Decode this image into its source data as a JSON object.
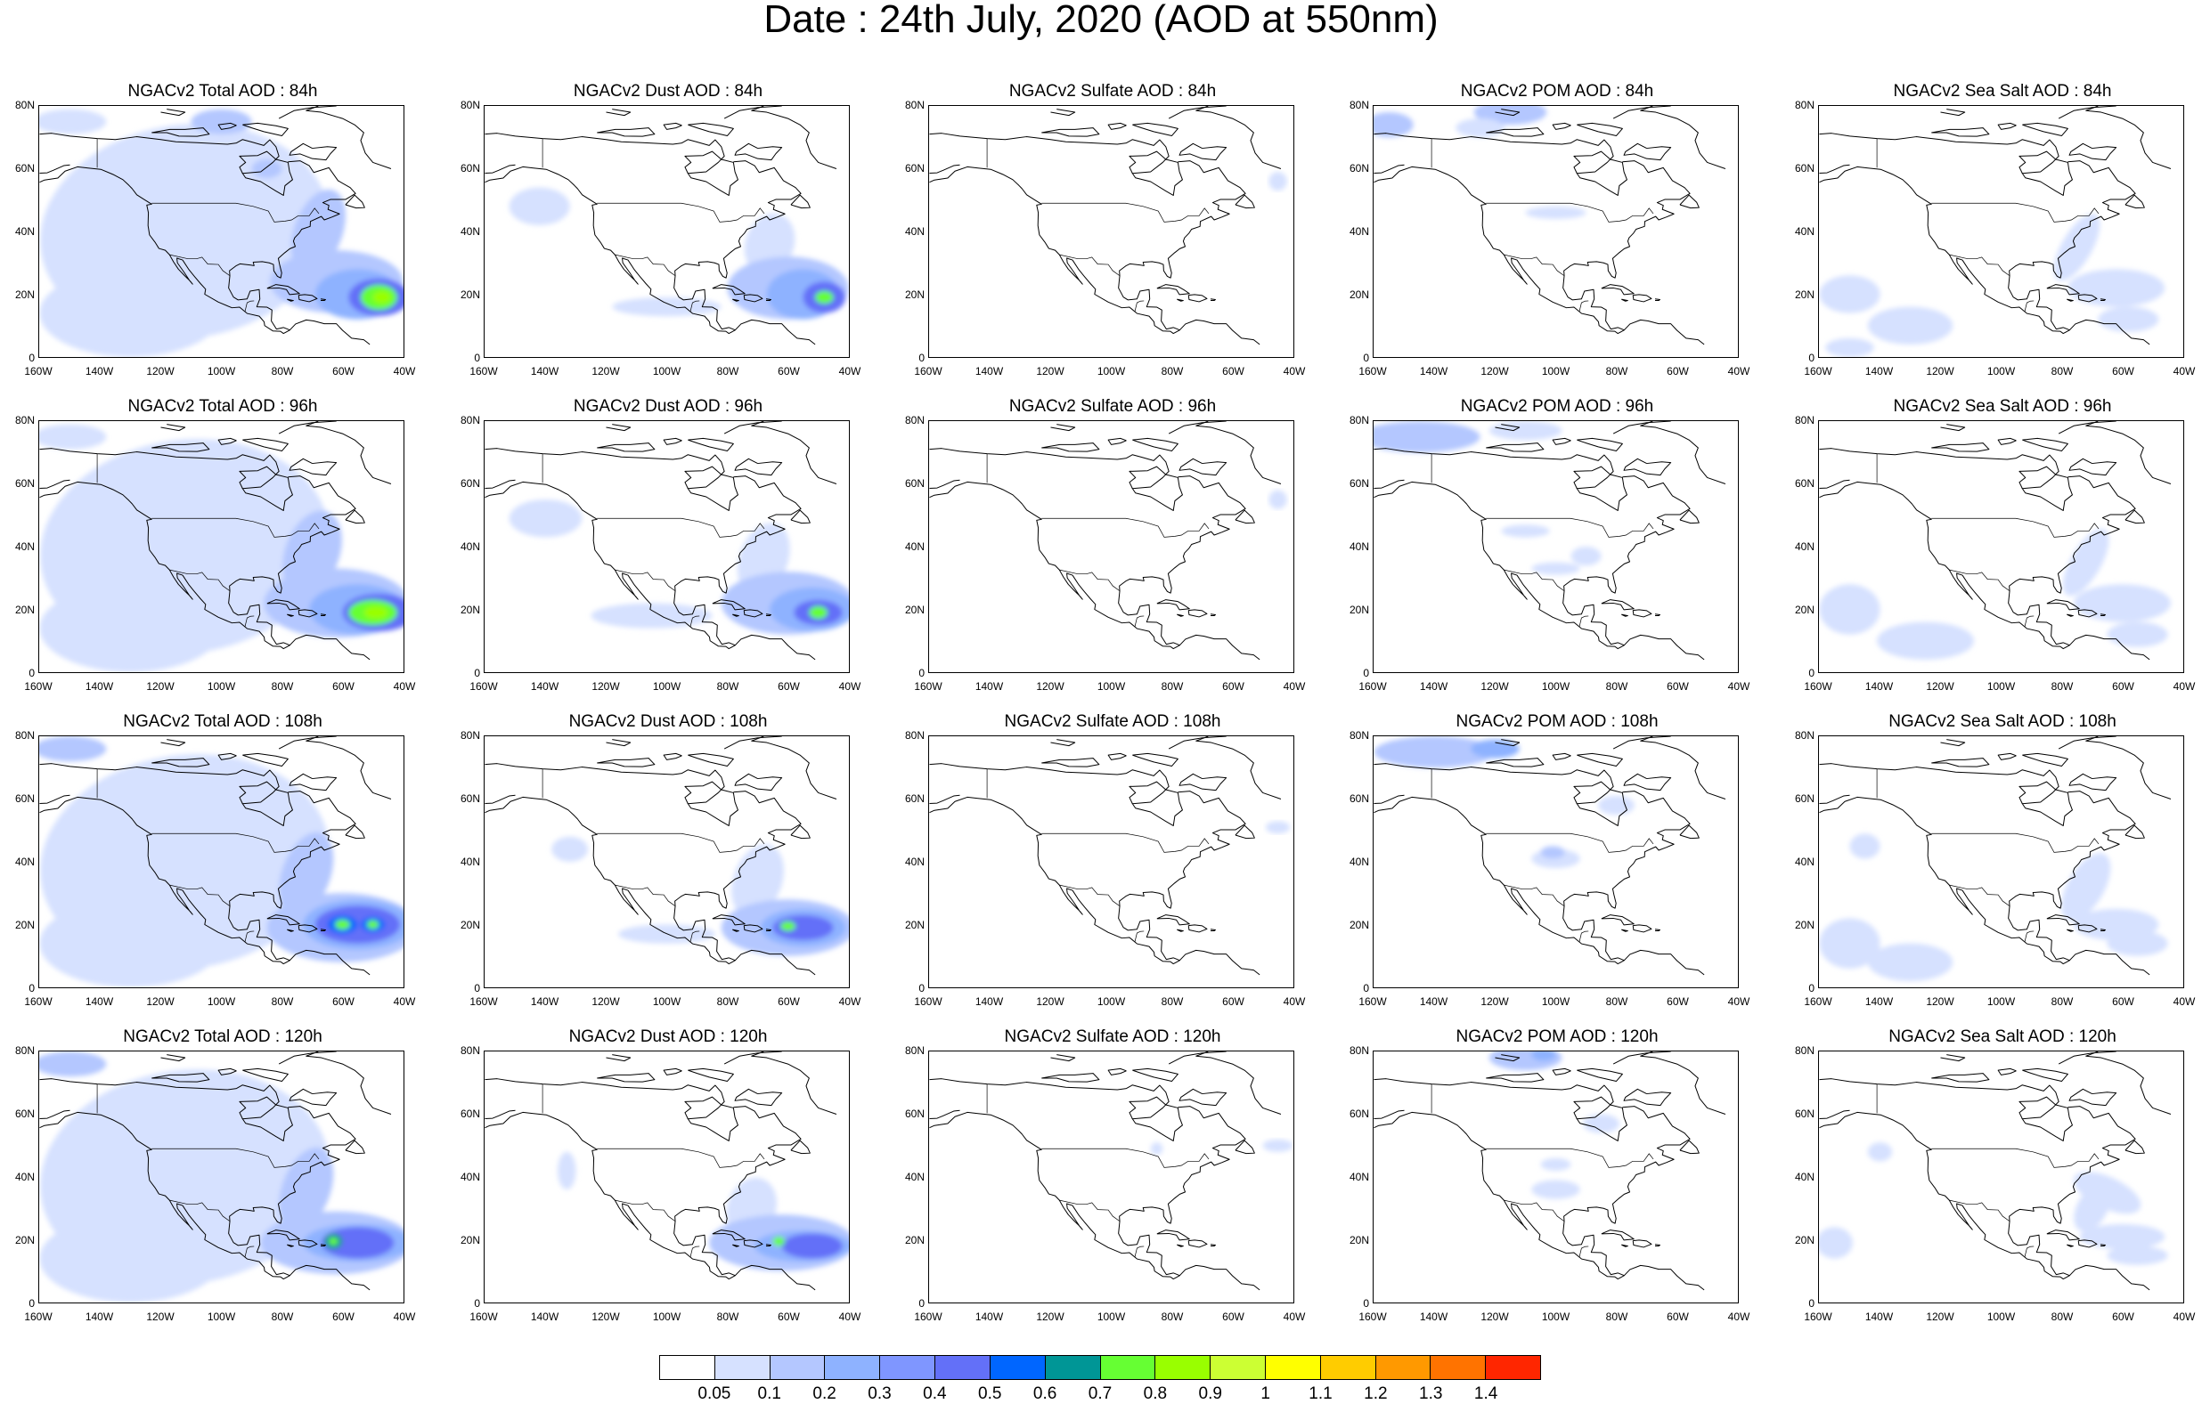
{
  "title": "Date : 24th July, 2020 (AOD at 550nm)",
  "y_tick_labels": [
    "80N",
    "60N",
    "40N",
    "20N",
    "0"
  ],
  "x_tick_labels": [
    "160W",
    "140W",
    "120W",
    "100W",
    "80W",
    "60W",
    "40W"
  ],
  "panels": [
    {
      "title": "NGACv2 Total AOD : 84h"
    },
    {
      "title": "NGACv2 Dust AOD : 84h"
    },
    {
      "title": "NGACv2 Sulfate AOD : 84h"
    },
    {
      "title": "NGACv2 POM AOD : 84h"
    },
    {
      "title": "NGACv2 Sea Salt AOD : 84h"
    },
    {
      "title": "NGACv2 Total AOD : 96h"
    },
    {
      "title": "NGACv2 Dust AOD : 96h"
    },
    {
      "title": "NGACv2 Sulfate AOD : 96h"
    },
    {
      "title": "NGACv2 POM AOD : 96h"
    },
    {
      "title": "NGACv2 Sea Salt AOD : 96h"
    },
    {
      "title": "NGACv2 Total AOD : 108h"
    },
    {
      "title": "NGACv2 Dust AOD : 108h"
    },
    {
      "title": "NGACv2 Sulfate AOD : 108h"
    },
    {
      "title": "NGACv2 POM AOD : 108h"
    },
    {
      "title": "NGACv2 Sea Salt AOD : 108h"
    },
    {
      "title": "NGACv2 Total AOD : 120h"
    },
    {
      "title": "NGACv2 Dust AOD : 120h"
    },
    {
      "title": "NGACv2 Sulfate AOD : 120h"
    },
    {
      "title": "NGACv2 POM AOD : 120h"
    },
    {
      "title": "NGACv2 Sea Salt  AOD : 120h"
    }
  ],
  "colorbar": {
    "colors": [
      "#ffffff",
      "#d6e1ff",
      "#b4c7ff",
      "#8eb2ff",
      "#7f96ff",
      "#6370f8",
      "#0066ff",
      "#009696",
      "#66ff33",
      "#99ff00",
      "#ccff33",
      "#ffff00",
      "#ffcc00",
      "#ff9900",
      "#ff7300",
      "#ff2600"
    ],
    "labels": [
      "0.05",
      "0.1",
      "0.2",
      "0.3",
      "0.4",
      "0.5",
      "0.6",
      "0.7",
      "0.8",
      "0.9",
      "1",
      "1.1",
      "1.2",
      "1.3",
      "1.4"
    ]
  }
}
